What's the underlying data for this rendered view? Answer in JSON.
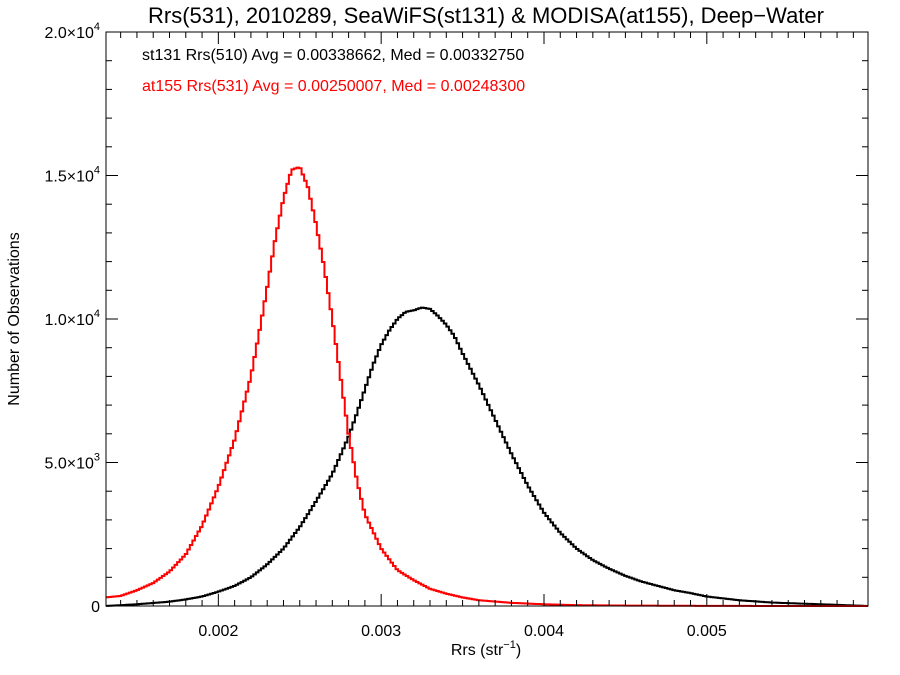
{
  "chart_data": {
    "type": "line",
    "title": "Rrs(531), 2010289, SeaWiFS(st131) & MODISA(at155), Deep−Water",
    "xlabel": "Rrs (str",
    "xlabel_sup": "−1",
    "xlabel_close": ")",
    "ylabel": "Number of Observations",
    "xlim": [
      0.00131,
      0.00599
    ],
    "ylim": [
      0,
      20000
    ],
    "grid": false,
    "x_ticks": [
      {
        "value": 0.002,
        "label": "0.002"
      },
      {
        "value": 0.003,
        "label": "0.003"
      },
      {
        "value": 0.004,
        "label": "0.004"
      },
      {
        "value": 0.005,
        "label": "0.005"
      }
    ],
    "y_ticks": [
      {
        "value": 0,
        "mant": "0",
        "sup": ""
      },
      {
        "value": 5000,
        "mant": "5.0×10",
        "sup": "3"
      },
      {
        "value": 10000,
        "mant": "1.0×10",
        "sup": "4"
      },
      {
        "value": 15000,
        "mant": "1.5×10",
        "sup": "4"
      },
      {
        "value": 20000,
        "mant": "2.0×10",
        "sup": "4"
      }
    ],
    "legend": [
      {
        "text": "st131 Rrs(510) Avg = 0.00338662, Med = 0.00332750",
        "color": "#000000"
      },
      {
        "text": "at155 Rrs(531) Avg = 0.00250007, Med = 0.00248300",
        "color": "#ff0000"
      }
    ],
    "series": [
      {
        "color": "#000000",
        "x": [
          0.00131,
          0.0015,
          0.0017,
          0.0018,
          0.0019,
          0.002,
          0.0021,
          0.0022,
          0.0023,
          0.0024,
          0.0025,
          0.0026,
          0.0027,
          0.00275,
          0.0028,
          0.00285,
          0.0029,
          0.00295,
          0.003,
          0.00305,
          0.0031,
          0.00315,
          0.0032,
          0.00325,
          0.0033,
          0.00335,
          0.0034,
          0.00345,
          0.0035,
          0.0036,
          0.0037,
          0.0038,
          0.0039,
          0.004,
          0.0041,
          0.0042,
          0.0043,
          0.0044,
          0.0045,
          0.0046,
          0.0047,
          0.0048,
          0.0049,
          0.005,
          0.0052,
          0.0054,
          0.0056,
          0.0058,
          0.00599
        ],
        "y": [
          0,
          60,
          150,
          230,
          330,
          500,
          700,
          1000,
          1450,
          2000,
          2750,
          3650,
          4600,
          5250,
          5900,
          6700,
          7550,
          8400,
          9100,
          9600,
          10000,
          10250,
          10300,
          10400,
          10350,
          10100,
          9800,
          9400,
          8800,
          7700,
          6500,
          5300,
          4200,
          3250,
          2550,
          2000,
          1600,
          1300,
          1050,
          850,
          700,
          550,
          450,
          330,
          200,
          120,
          80,
          40,
          0
        ]
      },
      {
        "color": "#ff0000",
        "x": [
          0.00131,
          0.0014,
          0.0015,
          0.0016,
          0.0017,
          0.0018,
          0.0019,
          0.002,
          0.0021,
          0.0022,
          0.00225,
          0.0023,
          0.00235,
          0.0024,
          0.00245,
          0.0025,
          0.00255,
          0.0026,
          0.00265,
          0.0027,
          0.00275,
          0.0028,
          0.00285,
          0.0029,
          0.003,
          0.0031,
          0.0032,
          0.0033,
          0.0034,
          0.0035,
          0.0036,
          0.0038,
          0.004,
          0.0042,
          0.0045,
          0.005,
          0.0055,
          0.00599
        ],
        "y": [
          300,
          350,
          550,
          800,
          1200,
          1800,
          2800,
          4150,
          5800,
          8000,
          9500,
          11100,
          12800,
          14200,
          15200,
          15300,
          14600,
          13300,
          11800,
          10000,
          8000,
          6000,
          4400,
          3200,
          2000,
          1250,
          900,
          600,
          430,
          300,
          200,
          110,
          60,
          30,
          15,
          5,
          0,
          0
        ]
      }
    ]
  }
}
